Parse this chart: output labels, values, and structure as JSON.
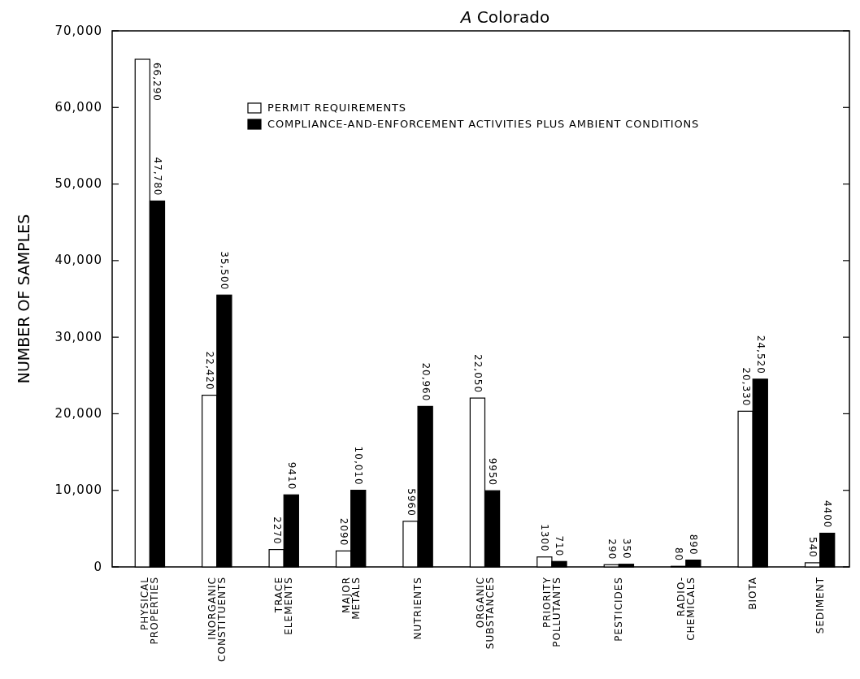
{
  "chart_data": {
    "type": "bar",
    "title": "A Colorado",
    "ylabel": "NUMBER OF SAMPLES",
    "categories": [
      "PHYSICAL\nPROPERTIES",
      "INORGANIC\nCONSTITUENTS",
      "TRACE\nELEMENTS",
      "MAJOR\nMETALS",
      "NUTRIENTS",
      "ORGANIC\nSUBSTANCES",
      "PRIORITY\nPOLLUTANTS",
      "PESTICIDES",
      "RADIO-\nCHEMICALS",
      "BIOTA",
      "SEDIMENT"
    ],
    "series": [
      {
        "name": "PERMIT REQUIREMENTS",
        "color": "#ffffff",
        "values": [
          66290,
          22420,
          2270,
          2090,
          5960,
          22050,
          1300,
          290,
          80,
          20330,
          540
        ],
        "value_labels": [
          "66,290",
          "22,420",
          "2270",
          "2090",
          "5960",
          "22,050",
          "1300",
          "290",
          "80",
          "20,330",
          "540"
        ]
      },
      {
        "name": "COMPLIANCE-AND-ENFORCEMENT ACTIVITIES PLUS AMBIENT CONDITIONS",
        "color": "#000000",
        "values": [
          47780,
          35500,
          9410,
          10010,
          20960,
          9950,
          710,
          350,
          890,
          24520,
          4400
        ],
        "value_labels": [
          "47,780",
          "35,500",
          "9410",
          "10,010",
          "20,960",
          "9950",
          "710",
          "350",
          "890",
          "24,520",
          "4400"
        ]
      }
    ],
    "ylim": [
      0,
      70000
    ],
    "yticks": [
      0,
      {
        "value": 10000,
        "label": "10,000"
      },
      {
        "value": 20000,
        "label": "20,000"
      },
      {
        "value": 30000,
        "label": "30,000"
      },
      {
        "value": 40000,
        "label": "40,000"
      },
      {
        "value": 50000,
        "label": "50,000"
      },
      {
        "value": 60000,
        "label": "60,000"
      },
      {
        "value": 70000,
        "label": "70,000"
      }
    ],
    "grid": false,
    "legend": "top right"
  }
}
